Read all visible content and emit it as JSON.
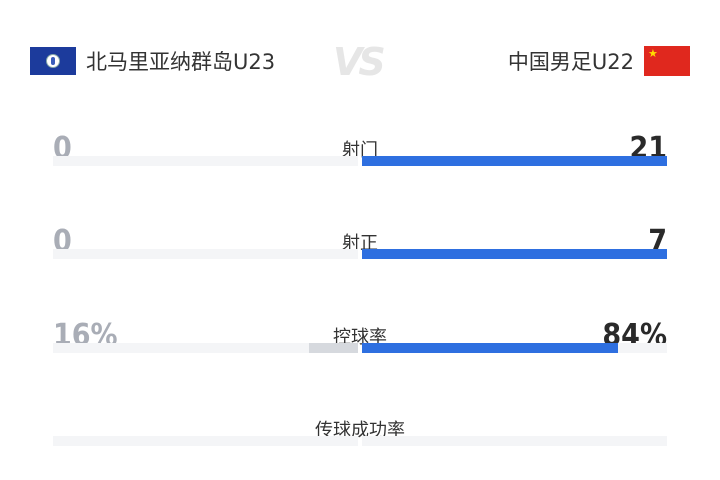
{
  "header": {
    "home_team": "北马里亚纳群岛U23",
    "away_team": "中国男足U22",
    "vs_label": "VS",
    "home_flag": "northern-mariana-islands-flag",
    "away_flag": "china-flag"
  },
  "colors": {
    "home_bar": "#d6d9de",
    "away_bar": "#2e6fe0",
    "track": "#f4f5f7"
  },
  "stats": [
    {
      "label": "射门",
      "home": "0",
      "away": "21",
      "home_share": 0,
      "away_share": 1
    },
    {
      "label": "射正",
      "home": "0",
      "away": "7",
      "home_share": 0,
      "away_share": 1
    },
    {
      "label": "控球率",
      "home": "16%",
      "away": "84%",
      "home_share": 0.16,
      "away_share": 0.84
    },
    {
      "label": "传球成功率",
      "home": "",
      "away": "",
      "home_share": 0,
      "away_share": 0
    }
  ]
}
